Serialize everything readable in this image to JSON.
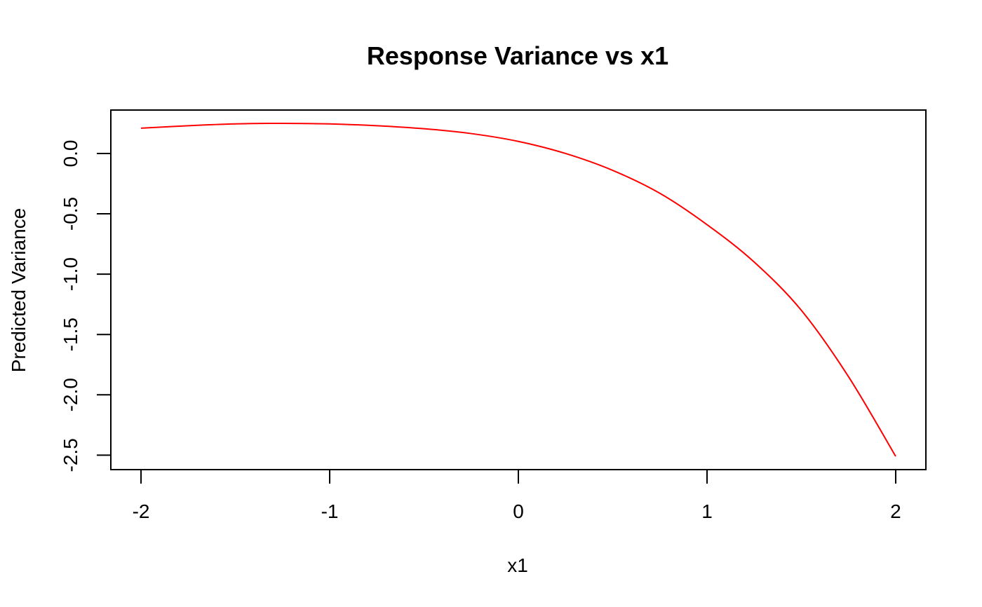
{
  "chart_data": {
    "type": "line",
    "title": "Response Variance vs x1",
    "xlabel": "x1",
    "ylabel": "Predicted Variance",
    "xlim": [
      -2.16,
      2.16
    ],
    "ylim": [
      -2.62,
      0.36
    ],
    "xticks": [
      -2,
      -1,
      0,
      1,
      2
    ],
    "xtick_labels": [
      "-2",
      "-1",
      "0",
      "1",
      "2"
    ],
    "yticks": [
      0.0,
      -0.5,
      -1.0,
      -1.5,
      -2.0,
      -2.5
    ],
    "ytick_labels": [
      "0.0",
      "-0.5",
      "-1.0",
      "-1.5",
      "-2.0",
      "-2.5"
    ],
    "grid": false,
    "series": [
      {
        "color": "#ff0000",
        "x": [
          -2.0,
          -1.75,
          -1.5,
          -1.25,
          -1.0,
          -0.75,
          -0.5,
          -0.25,
          0.0,
          0.25,
          0.5,
          0.75,
          1.0,
          1.25,
          1.5,
          1.75,
          2.0
        ],
        "y": [
          0.21,
          0.23,
          0.245,
          0.25,
          0.245,
          0.23,
          0.205,
          0.165,
          0.1,
          0.0,
          -0.14,
          -0.33,
          -0.59,
          -0.9,
          -1.3,
          -1.85,
          -2.51
        ]
      }
    ]
  }
}
